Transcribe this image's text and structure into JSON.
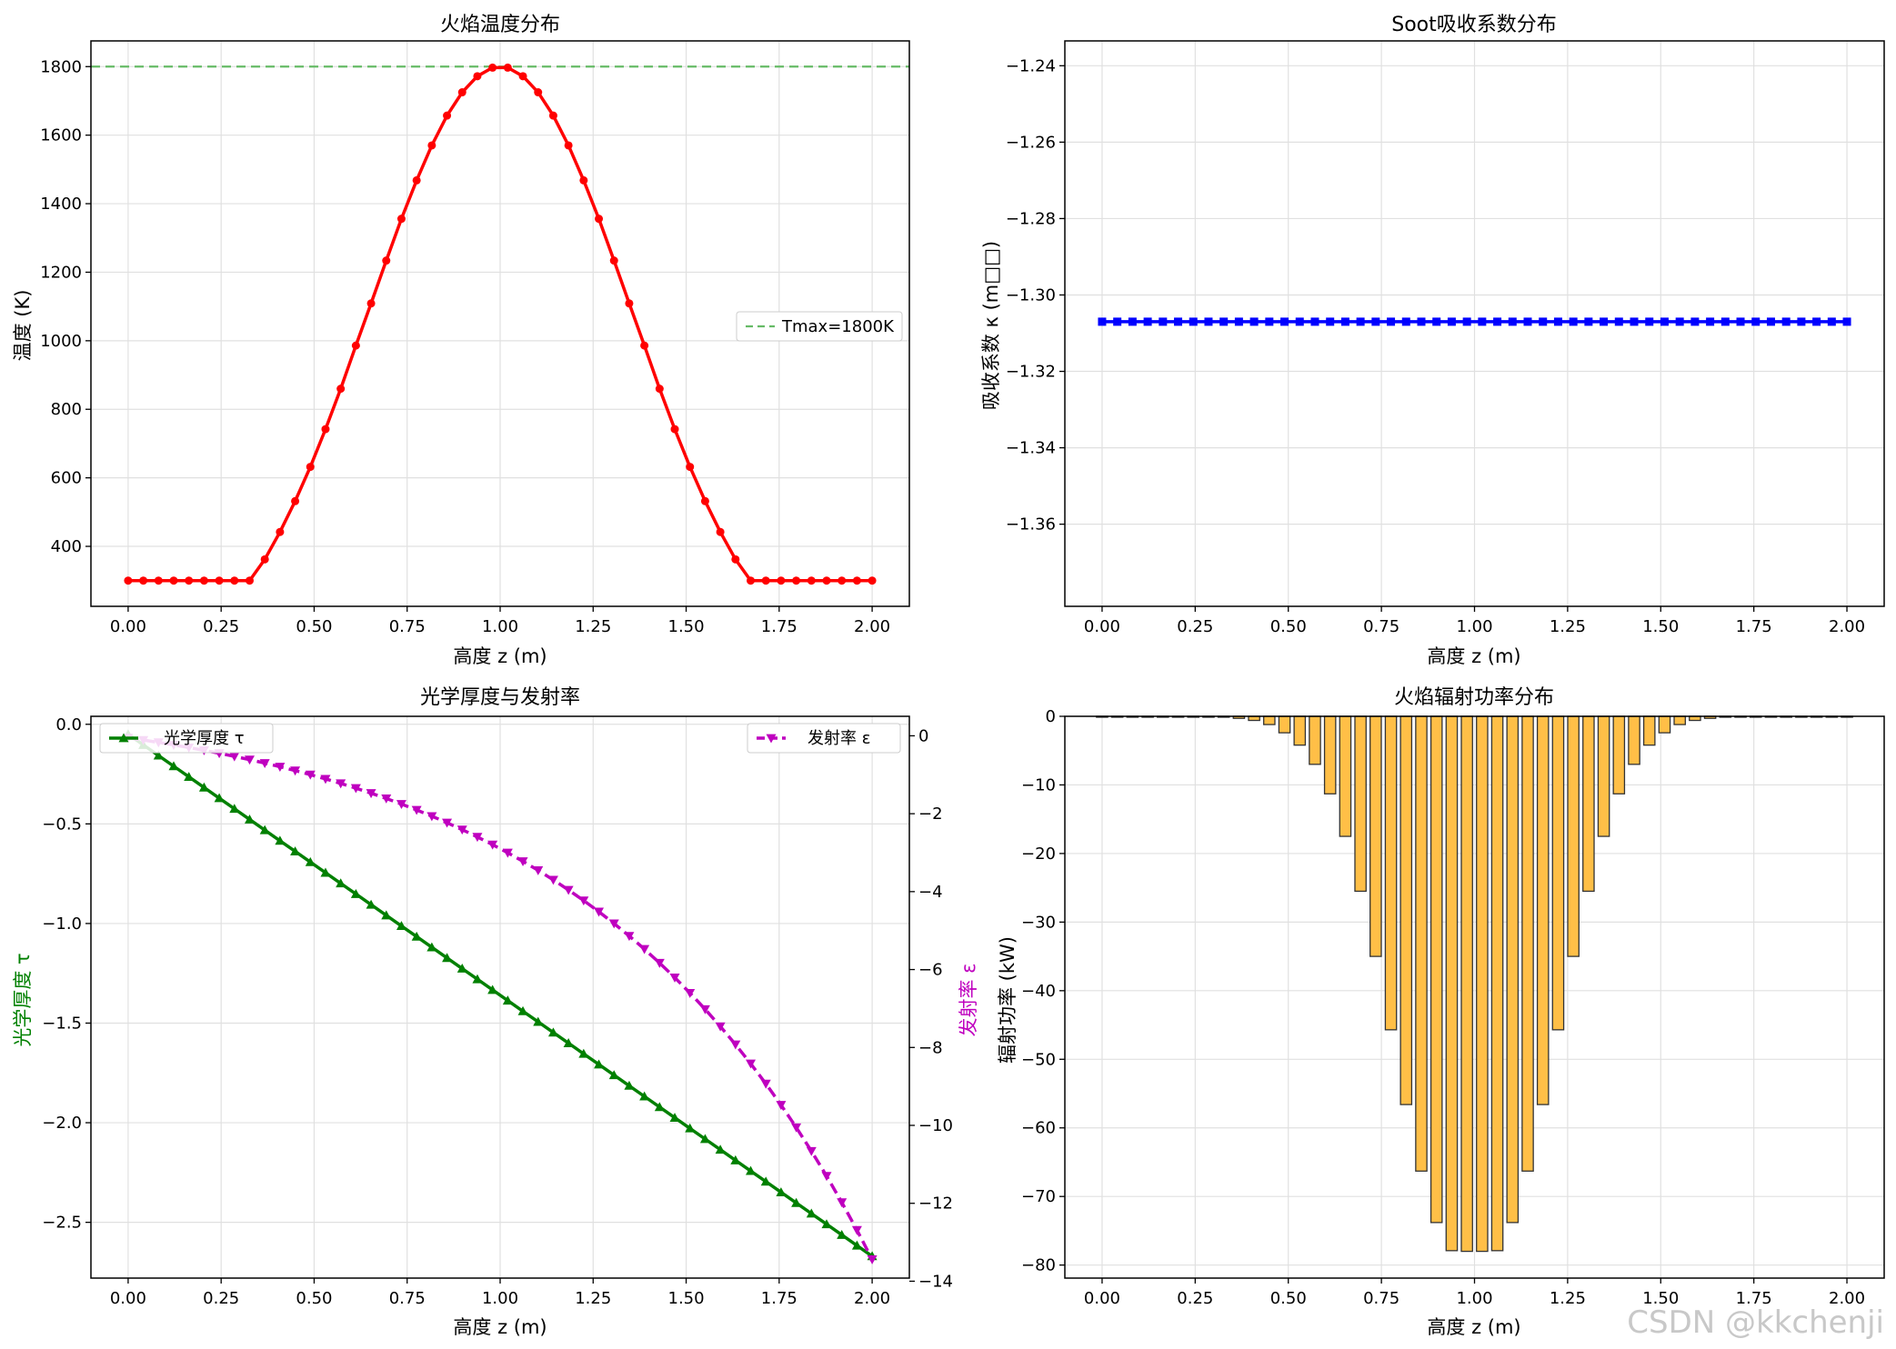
{
  "watermark": "CSDN @kkchenji",
  "chart_data": [
    {
      "type": "line",
      "title": "火焰温度分布",
      "xlabel": "高度 z (m)",
      "ylabel": "温度 (K)",
      "xlim": [
        -0.1,
        2.1
      ],
      "ylim": [
        225,
        1875
      ],
      "xticks": [
        0,
        0.25,
        0.5,
        0.75,
        1.0,
        1.25,
        1.5,
        1.75,
        2.0
      ],
      "yticks": [
        400,
        600,
        800,
        1000,
        1200,
        1400,
        1600,
        1800
      ],
      "xticklabels": [
        "0.00",
        "0.25",
        "0.50",
        "0.75",
        "1.00",
        "1.25",
        "1.50",
        "1.75",
        "2.00"
      ],
      "yticklabels": [
        "400",
        "600",
        "800",
        "1000",
        "1200",
        "1400",
        "1600",
        "1800"
      ],
      "grid": true,
      "legend_loc": "center-right",
      "series": [
        {
          "kind": "line",
          "color": "#ff0000",
          "marker": "o",
          "x": "linspace(0,2,50)",
          "values": [
            300,
            300,
            300,
            300,
            300,
            300,
            300,
            300,
            300,
            362,
            442,
            532,
            632,
            742,
            860,
            986,
            1109,
            1234,
            1356,
            1468,
            1570,
            1657,
            1725,
            1772,
            1797,
            1797,
            1772,
            1725,
            1657,
            1570,
            1468,
            1356,
            1234,
            1109,
            986,
            860,
            742,
            632,
            532,
            442,
            362,
            300,
            300,
            300,
            300,
            300,
            300,
            300,
            300,
            300
          ]
        },
        {
          "kind": "hline",
          "name": "Tmax=1800K",
          "color": "#66bb66",
          "style": "dashed",
          "y": 1800
        }
      ]
    },
    {
      "type": "line",
      "title": "Soot吸收系数分布",
      "xlabel": "高度 z (m)",
      "ylabel": "吸收系数  κ  (m□□)",
      "xlim": [
        -0.1,
        2.1
      ],
      "ylim": [
        -1.3815,
        -1.2335
      ],
      "xticks": [
        0,
        0.25,
        0.5,
        0.75,
        1.0,
        1.25,
        1.5,
        1.75,
        2.0
      ],
      "yticks": [
        -1.24,
        -1.26,
        -1.28,
        -1.3,
        -1.32,
        -1.34,
        -1.36
      ],
      "xticklabels": [
        "0.00",
        "0.25",
        "0.50",
        "0.75",
        "1.00",
        "1.25",
        "1.50",
        "1.75",
        "2.00"
      ],
      "yticklabels": [
        "−1.24",
        "−1.26",
        "−1.28",
        "−1.30",
        "−1.32",
        "−1.34",
        "−1.36"
      ],
      "grid": true,
      "series": [
        {
          "kind": "line",
          "color": "#0000ff",
          "marker": "s",
          "x": "linspace(0,2,50)",
          "constant": -1.307,
          "count": 50
        }
      ]
    },
    {
      "type": "line",
      "title": "光学厚度与发射率",
      "xlabel": "高度 z (m)",
      "ylabel": "光学厚度  τ",
      "ylabel_right": "发射率  ε",
      "xlim": [
        -0.1,
        2.1
      ],
      "ylim": [
        -2.78,
        0.04
      ],
      "ylim_right": [
        -13.92,
        0.5
      ],
      "xticks": [
        0,
        0.25,
        0.5,
        0.75,
        1.0,
        1.25,
        1.5,
        1.75,
        2.0
      ],
      "yticks": [
        0.0,
        -0.5,
        -1.0,
        -1.5,
        -2.0,
        -2.5
      ],
      "yticks_right": [
        0,
        -2,
        -4,
        -6,
        -8,
        -10,
        -12,
        -14
      ],
      "xticklabels": [
        "0.00",
        "0.25",
        "0.50",
        "0.75",
        "1.00",
        "1.25",
        "1.50",
        "1.75",
        "2.00"
      ],
      "yticklabels": [
        "0.0",
        "−0.5",
        "−1.0",
        "−1.5",
        "−2.0",
        "−2.5"
      ],
      "yticklabels_right": [
        "0",
        "−2",
        "−4",
        "−6",
        "−8",
        "−10",
        "−12",
        "−14"
      ],
      "grid": true,
      "series": [
        {
          "kind": "line",
          "name": "光学厚度  τ",
          "axis": "left",
          "color": "#008000",
          "marker": "^",
          "x": "linspace(0,2,50)",
          "start": -0.05,
          "end": -2.67,
          "legend_loc": "upper-left"
        },
        {
          "kind": "line",
          "name": "发射率  ε",
          "axis": "right",
          "color": "#bf00bf",
          "style": "dashed",
          "marker": "v",
          "x": "linspace(0,2,50)",
          "formula": "1-exp(-tau)",
          "legend_loc": "upper-right"
        }
      ]
    },
    {
      "type": "bar",
      "title": "火焰辐射功率分布",
      "xlabel": "高度 z (m)",
      "ylabel": "辐射功率 (kW)",
      "xlim": [
        -0.1,
        2.1
      ],
      "ylim": [
        -81.9,
        0
      ],
      "xticks": [
        0,
        0.25,
        0.5,
        0.75,
        1.0,
        1.25,
        1.5,
        1.75,
        2.0
      ],
      "yticks": [
        0,
        -10,
        -20,
        -30,
        -40,
        -50,
        -60,
        -70,
        -80
      ],
      "xticklabels": [
        "0.00",
        "0.25",
        "0.50",
        "0.75",
        "1.00",
        "1.25",
        "1.50",
        "1.75",
        "2.00"
      ],
      "yticklabels": [
        "0",
        "−10",
        "−20",
        "−30",
        "−40",
        "−50",
        "−60",
        "−70",
        "−80"
      ],
      "grid": true,
      "bar_color": "#ffbf47",
      "edge_color": "#333333",
      "bar_width": 0.03,
      "x": "linspace(0,2,50)",
      "values": [
        -0.1,
        -0.1,
        -0.1,
        -0.1,
        -0.1,
        -0.1,
        -0.1,
        -0.1,
        -0.1,
        -0.3,
        -0.6,
        -1.2,
        -2.4,
        -4.2,
        -7,
        -11.3,
        -17.5,
        -25.5,
        -35,
        -45.7,
        -56.6,
        -66.3,
        -73.8,
        -77.9,
        -78,
        -78,
        -77.9,
        -73.8,
        -66.3,
        -56.6,
        -45.7,
        -35,
        -25.5,
        -17.5,
        -11.3,
        -7,
        -4.2,
        -2.4,
        -1.2,
        -0.6,
        -0.3,
        -0.1,
        -0.1,
        -0.1,
        -0.1,
        -0.1,
        -0.1,
        -0.1,
        -0.1,
        -0.1
      ]
    }
  ]
}
